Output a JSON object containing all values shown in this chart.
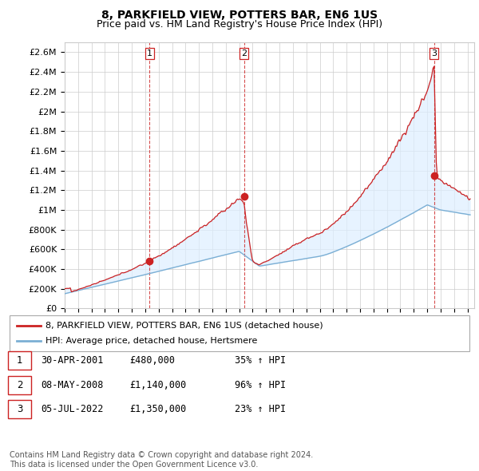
{
  "title": "8, PARKFIELD VIEW, POTTERS BAR, EN6 1US",
  "subtitle": "Price paid vs. HM Land Registry's House Price Index (HPI)",
  "ylim": [
    0,
    2700000
  ],
  "xlim_start": 1995.0,
  "xlim_end": 2025.5,
  "ytick_labels": [
    "£0",
    "£200K",
    "£400K",
    "£600K",
    "£800K",
    "£1M",
    "£1.2M",
    "£1.4M",
    "£1.6M",
    "£1.8M",
    "£2M",
    "£2.2M",
    "£2.4M",
    "£2.6M"
  ],
  "ytick_values": [
    0,
    200000,
    400000,
    600000,
    800000,
    1000000,
    1200000,
    1400000,
    1600000,
    1800000,
    2000000,
    2200000,
    2400000,
    2600000
  ],
  "sale_dates": [
    2001.33,
    2008.36,
    2022.51
  ],
  "sale_prices": [
    480000,
    1140000,
    1350000
  ],
  "sale_labels": [
    "1",
    "2",
    "3"
  ],
  "hpi_color": "#7bafd4",
  "hpi_fill_color": "#ddeeff",
  "price_color": "#cc2222",
  "vline_color": "#cc2222",
  "background_color": "#ffffff",
  "grid_color": "#cccccc",
  "legend_entries": [
    "8, PARKFIELD VIEW, POTTERS BAR, EN6 1US (detached house)",
    "HPI: Average price, detached house, Hertsmere"
  ],
  "table_rows": [
    [
      "1",
      "30-APR-2001",
      "£480,000",
      "35% ↑ HPI"
    ],
    [
      "2",
      "08-MAY-2008",
      "£1,140,000",
      "96% ↑ HPI"
    ],
    [
      "3",
      "05-JUL-2022",
      "£1,350,000",
      "23% ↑ HPI"
    ]
  ],
  "footnote": "Contains HM Land Registry data © Crown copyright and database right 2024.\nThis data is licensed under the Open Government Licence v3.0.",
  "title_fontsize": 10,
  "subtitle_fontsize": 9,
  "tick_fontsize": 8,
  "legend_fontsize": 8,
  "table_fontsize": 8.5,
  "footnote_fontsize": 7
}
